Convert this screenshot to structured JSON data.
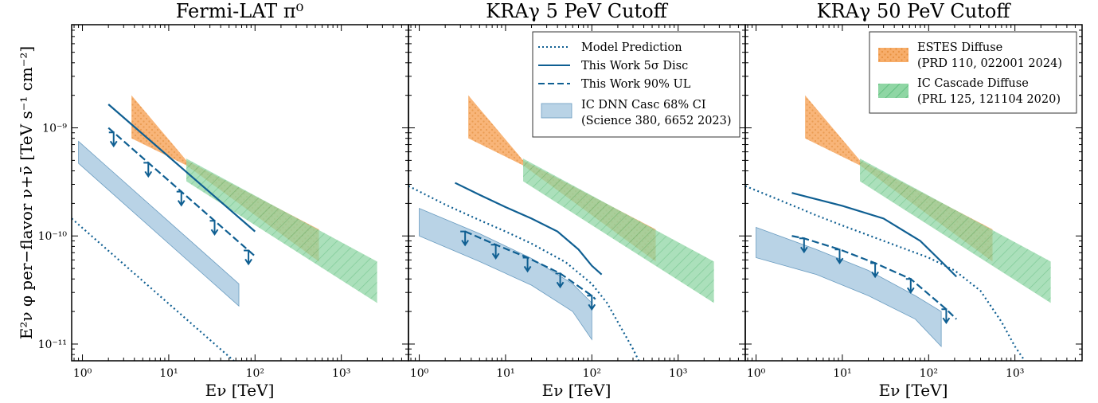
{
  "figure": {
    "ylabel": "E²ν φ per−flavor ν+ν̄ [TeV s⁻¹ cm⁻²]",
    "xlabel": "Eν [TeV]"
  },
  "panels": [
    {
      "title": "Fermi-LAT π⁰"
    },
    {
      "title": "KRAγ 5 PeV Cutoff"
    },
    {
      "title": "KRAγ 50 PeV Cutoff"
    }
  ],
  "ticks": {
    "x": [
      "10⁰",
      "10¹",
      "10²",
      "10³"
    ],
    "y": [
      "10⁻¹¹",
      "10⁻¹⁰",
      "10⁻⁹"
    ]
  },
  "legend_left": {
    "model": "Model Prediction",
    "disc": "This Work 5σ Disc",
    "ul": "This Work 90% UL",
    "dnn1": "IC DNN Casc 68% CI",
    "dnn2": "(Science 380, 6652 2023)"
  },
  "legend_right": {
    "estes1": "ESTES Diffuse",
    "estes2": "(PRD 110, 022001 2024)",
    "casc1": "IC Cascade Diffuse",
    "casc2": "(PRL 125, 121104 2020)"
  },
  "colors": {
    "line": "#0f5f92",
    "dnn_fill": "#8ab6d6",
    "estes_fill": "#f5a45c",
    "casc_fill": "#75cc90"
  },
  "chart_data": [
    {
      "type": "line",
      "title": "Fermi-LAT π⁰",
      "xlabel": "Eν [TeV]",
      "ylabel": "E²ν φ per−flavor ν+ν̄ [TeV s⁻¹ cm⁻²]",
      "x_scale": "log",
      "y_scale": "log",
      "xlim": [
        0.75,
        6000
      ],
      "ylim": [
        7e-12,
        9e-09
      ],
      "series": [
        {
          "name": "Model Prediction",
          "style": "dotted",
          "x": [
            0.75,
            80
          ],
          "y": [
            1.45e-10,
            5.5e-12
          ]
        },
        {
          "name": "This Work 5σ Disc",
          "style": "solid",
          "x": [
            2,
            100
          ],
          "y": [
            1.65e-09,
            1.1e-10
          ]
        },
        {
          "name": "This Work 90% UL",
          "style": "dashed",
          "x": [
            2,
            100
          ],
          "y": [
            1e-09,
            6.5e-11
          ],
          "arrows_x": [
            2.3,
            5.8,
            14,
            34,
            84
          ]
        },
        {
          "name": "IC DNN Casc 68% CI",
          "style": "band",
          "x": [
            0.9,
            65
          ],
          "y_low": [
            4.7e-10,
            2.25e-11
          ],
          "y_high": [
            7.5e-10,
            3.6e-11
          ]
        },
        {
          "name": "ESTES Diffuse",
          "style": "band",
          "x": [
            3.7,
            16,
            550
          ],
          "y_low": [
            8e-10,
            4.5e-10,
            5.8e-11
          ],
          "y_high": [
            2e-09,
            5e-10,
            1.15e-10
          ]
        },
        {
          "name": "IC Cascade Diffuse",
          "style": "band",
          "x": [
            16,
            2600
          ],
          "y_low": [
            3.2e-10,
            2.4e-11
          ],
          "y_high": [
            5.2e-10,
            5.8e-11
          ]
        }
      ]
    },
    {
      "type": "line",
      "title": "KRAγ 5 PeV Cutoff",
      "xlabel": "Eν [TeV]",
      "x_scale": "log",
      "y_scale": "log",
      "xlim": [
        0.75,
        6000
      ],
      "ylim": [
        7e-12,
        9e-09
      ],
      "series": [
        {
          "name": "Model Prediction",
          "style": "dotted",
          "x": [
            0.75,
            2,
            5,
            10,
            20,
            50,
            100,
            150,
            200,
            300,
            350
          ],
          "y": [
            2.9e-10,
            1.95e-10,
            1.4e-10,
            1.1e-10,
            8.5e-11,
            5.7e-11,
            3.6e-11,
            2.4e-11,
            1.6e-11,
            9e-12,
            7e-12
          ]
        },
        {
          "name": "This Work 5σ Disc",
          "style": "solid",
          "x": [
            2.6,
            5,
            10,
            20,
            40,
            70,
            100,
            130
          ],
          "y": [
            3.1e-10,
            2.4e-10,
            1.85e-10,
            1.45e-10,
            1.1e-10,
            7.5e-11,
            5.3e-11,
            4.4e-11
          ]
        },
        {
          "name": "This Work 90% UL",
          "style": "dashed",
          "x": [
            3.4,
            7.7,
            18,
            43,
            100,
            110
          ],
          "y": [
            1.1e-10,
            8.3e-11,
            6.3e-11,
            4.5e-11,
            2.8e-11,
            2.6e-11
          ],
          "arrows_x": [
            3.4,
            7.7,
            18,
            43,
            100
          ]
        },
        {
          "name": "IC DNN Casc 68% CI",
          "style": "band",
          "x": [
            1,
            5,
            20,
            60,
            100
          ],
          "y_low": [
            1e-10,
            5.8e-11,
            3.5e-11,
            2e-11,
            1.1e-11
          ],
          "y_high": [
            1.8e-10,
            1.05e-10,
            6.2e-11,
            3.6e-11,
            2.4e-11
          ]
        },
        {
          "name": "ESTES Diffuse",
          "style": "band",
          "x": [
            3.7,
            16,
            550
          ],
          "y_low": [
            8e-10,
            4.5e-10,
            5.8e-11
          ],
          "y_high": [
            2e-09,
            5e-10,
            1.15e-10
          ]
        },
        {
          "name": "IC Cascade Diffuse",
          "style": "band",
          "x": [
            16,
            2600
          ],
          "y_low": [
            3.2e-10,
            2.4e-11
          ],
          "y_high": [
            5.2e-10,
            5.8e-11
          ]
        }
      ]
    },
    {
      "type": "line",
      "title": "KRAγ 50 PeV Cutoff",
      "xlabel": "Eν [TeV]",
      "x_scale": "log",
      "y_scale": "log",
      "xlim": [
        0.75,
        6000
      ],
      "ylim": [
        7e-12,
        9e-09
      ],
      "series": [
        {
          "name": "Model Prediction",
          "style": "dotted",
          "x": [
            0.75,
            2,
            5,
            10,
            30,
            100,
            200,
            400,
            700,
            1000,
            1300
          ],
          "y": [
            2.9e-10,
            2.1e-10,
            1.55e-10,
            1.25e-10,
            9e-11,
            6.3e-11,
            4.8e-11,
            3.1e-11,
            1.6e-11,
            9.5e-12,
            7e-12
          ]
        },
        {
          "name": "This Work 5σ Disc",
          "style": "solid",
          "x": [
            2.6,
            10,
            30,
            80,
            150,
            210
          ],
          "y": [
            2.5e-10,
            1.9e-10,
            1.45e-10,
            9e-11,
            5.5e-11,
            4.2e-11
          ]
        },
        {
          "name": "This Work 90% UL",
          "style": "dashed",
          "x": [
            2.6,
            3.6,
            9.3,
            24,
            62,
            160,
            210
          ],
          "y": [
            1e-10,
            9.5e-11,
            7.5e-11,
            5.6e-11,
            4e-11,
            2.1e-11,
            1.7e-11
          ],
          "arrows_x": [
            3.6,
            9.3,
            24,
            62,
            160
          ]
        },
        {
          "name": "IC DNN Casc 68% CI",
          "style": "band",
          "x": [
            1,
            5,
            20,
            70,
            140
          ],
          "y_low": [
            6.3e-11,
            4.4e-11,
            2.8e-11,
            1.7e-11,
            9.5e-12
          ],
          "y_high": [
            1.2e-10,
            7.5e-11,
            4.8e-11,
            2.8e-11,
            2e-11
          ]
        },
        {
          "name": "ESTES Diffuse",
          "style": "band",
          "x": [
            3.7,
            16,
            550
          ],
          "y_low": [
            8e-10,
            4.5e-10,
            5.8e-11
          ],
          "y_high": [
            2e-09,
            5e-10,
            1.15e-10
          ]
        },
        {
          "name": "IC Cascade Diffuse",
          "style": "band",
          "x": [
            16,
            2600
          ],
          "y_low": [
            3.2e-10,
            2.4e-11
          ],
          "y_high": [
            5.2e-10,
            5.8e-11
          ]
        }
      ]
    }
  ]
}
